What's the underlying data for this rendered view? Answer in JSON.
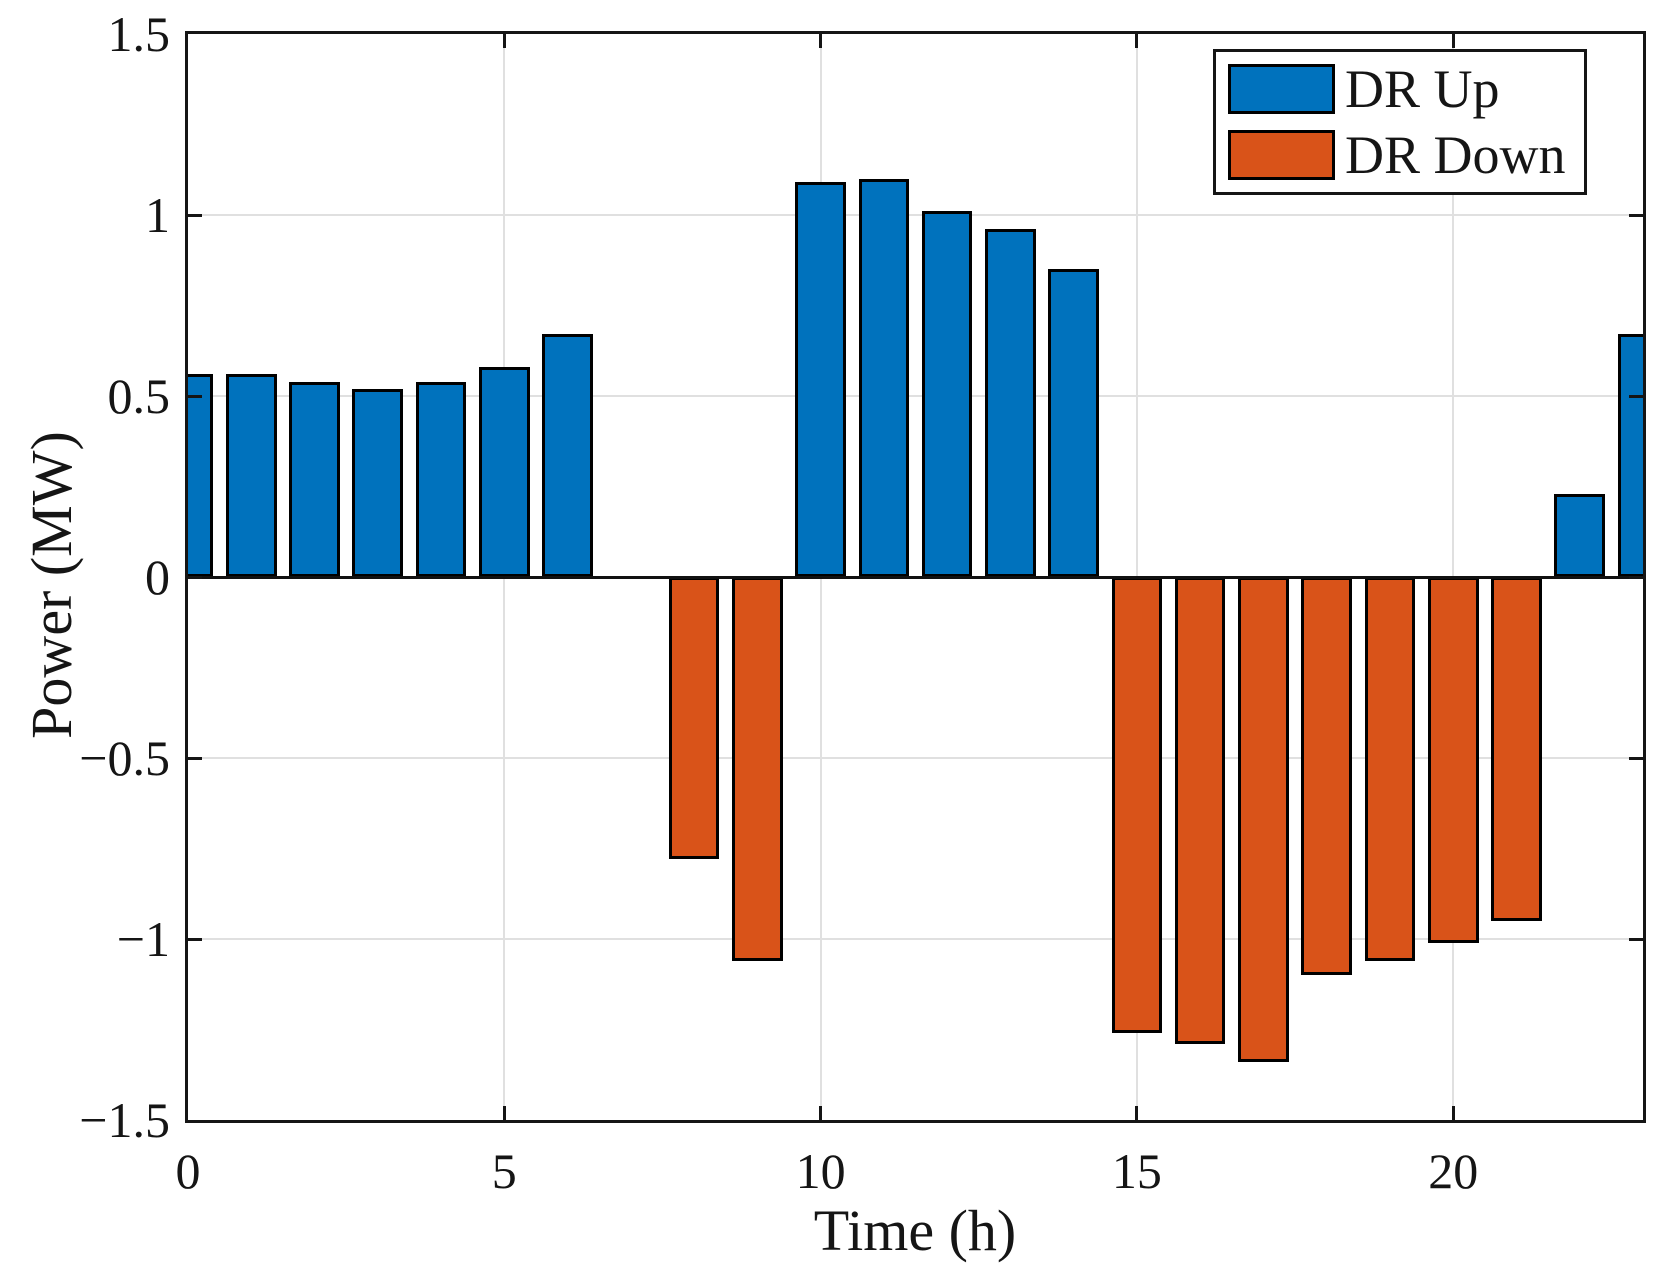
{
  "chart_data": {
    "type": "bar",
    "title": "",
    "xlabel": "Time (h)",
    "ylabel": "Power (MW)",
    "x": [
      0,
      1,
      2,
      3,
      4,
      5,
      6,
      7,
      8,
      9,
      10,
      11,
      12,
      13,
      14,
      15,
      16,
      17,
      18,
      19,
      20,
      21,
      22,
      23
    ],
    "series": [
      {
        "name": "DR Up",
        "color": "#0072BD",
        "values": [
          0.56,
          0.56,
          0.54,
          0.52,
          0.54,
          0.58,
          0.67,
          0,
          0,
          0,
          1.09,
          1.1,
          1.01,
          0.96,
          0.85,
          0,
          0,
          0,
          0,
          0,
          0,
          0,
          0.23,
          0.67
        ]
      },
      {
        "name": "DR Down",
        "color": "#D95319",
        "values": [
          0,
          0,
          0,
          0,
          0,
          0,
          0,
          0,
          -0.78,
          -1.06,
          0,
          0,
          0,
          0,
          0,
          -1.26,
          -1.29,
          -1.34,
          -1.1,
          -1.06,
          -1.01,
          -0.95,
          0,
          0
        ]
      }
    ],
    "bar_width": 0.8,
    "xlim": [
      0,
      23
    ],
    "ylim": [
      -1.5,
      1.5
    ],
    "xticks": [
      0,
      5,
      10,
      15,
      20
    ],
    "xtick_labels": [
      "0",
      "5",
      "10",
      "15",
      "20"
    ],
    "yticks": [
      -1.5,
      -1,
      -0.5,
      0,
      0.5,
      1,
      1.5
    ],
    "ytick_labels": [
      "−1.5",
      "−1",
      "−0.5",
      "0",
      "0.5",
      "1",
      "1.5"
    ],
    "grid": true,
    "grid_color": "#e0e0e0",
    "axis_color": "#151515",
    "bar_edge_color": "#000000",
    "legend": {
      "position": "top-right",
      "entries": [
        "DR Up",
        "DR Down"
      ]
    }
  }
}
